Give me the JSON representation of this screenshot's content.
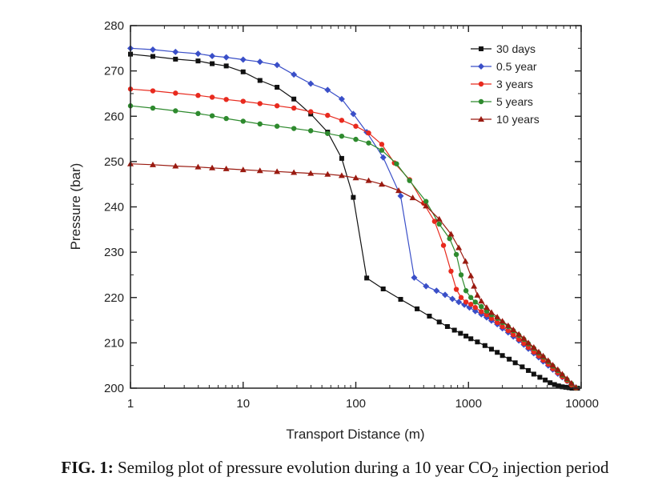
{
  "caption": {
    "label": "FIG. 1:",
    "text_before": "Semilog plot of pressure evolution during a 10 year CO",
    "subscript": "2",
    "text_after": " injection period"
  },
  "chart_data": {
    "type": "line",
    "title": "",
    "xlabel": "Transport Distance (m)",
    "ylabel": "Pressure (bar)",
    "xscale": "log",
    "xlim": [
      1,
      10000
    ],
    "ylim": [
      200,
      280
    ],
    "x_ticks": [
      1,
      10,
      100,
      1000,
      10000
    ],
    "x_tick_labels": [
      "1",
      "10",
      "100",
      "1000",
      "10000"
    ],
    "y_ticks": [
      200,
      210,
      220,
      230,
      240,
      250,
      260,
      270,
      280
    ],
    "y_tick_labels": [
      "200",
      "210",
      "220",
      "230",
      "240",
      "250",
      "260",
      "270",
      "280"
    ],
    "grid": false,
    "legend_position": "top-right",
    "series": [
      {
        "name": "30 days",
        "color": "#111111",
        "marker": "square",
        "x": [
          1,
          1.58,
          2.51,
          3.98,
          5.31,
          7.08,
          10,
          14.1,
          20,
          28.2,
          39.8,
          56.2,
          75,
          95,
          125,
          175,
          250,
          350,
          450,
          550,
          650,
          750,
          850,
          950,
          1050,
          1200,
          1400,
          1600,
          1800,
          2000,
          2300,
          2600,
          3000,
          3400,
          3800,
          4300,
          4800,
          5300,
          5800,
          6300,
          6800,
          7300,
          7800,
          8300,
          8800,
          9300
        ],
        "values": [
          273.7,
          273.2,
          272.6,
          272.2,
          271.6,
          271.1,
          269.8,
          267.9,
          266.4,
          263.8,
          260.5,
          256.5,
          250.7,
          242.1,
          224.3,
          221.9,
          219.6,
          217.5,
          215.9,
          214.6,
          213.6,
          212.8,
          212.1,
          211.5,
          210.9,
          210.2,
          209.4,
          208.6,
          207.9,
          207.2,
          206.4,
          205.6,
          204.7,
          203.9,
          203.1,
          202.4,
          201.8,
          201.2,
          200.8,
          200.5,
          200.3,
          200.2,
          200.1,
          200.0,
          200.0,
          200.0
        ]
      },
      {
        "name": "0.5 year",
        "color": "#3a4fc8",
        "marker": "diamond",
        "x": [
          1,
          1.58,
          2.51,
          3.98,
          5.31,
          7.08,
          10,
          14.1,
          20,
          28.2,
          39.8,
          56.2,
          75,
          95,
          125,
          175,
          250,
          330,
          420,
          520,
          620,
          720,
          820,
          920,
          1020,
          1150,
          1300,
          1450,
          1600,
          1800,
          2000,
          2250,
          2500,
          2800,
          3100,
          3400,
          3800,
          4200,
          4600,
          5100,
          5600,
          6200,
          6800,
          7500,
          8200,
          9000
        ],
        "values": [
          275.0,
          274.7,
          274.2,
          273.8,
          273.3,
          273.0,
          272.5,
          272.0,
          271.3,
          269.2,
          267.2,
          265.8,
          263.8,
          260.5,
          256.5,
          250.9,
          242.4,
          224.4,
          222.5,
          221.5,
          220.6,
          219.7,
          219.0,
          218.4,
          217.8,
          217.0,
          216.3,
          215.6,
          214.9,
          214.1,
          213.2,
          212.3,
          211.4,
          210.5,
          209.6,
          208.7,
          207.7,
          206.8,
          205.9,
          205.0,
          204.1,
          203.2,
          202.4,
          201.6,
          200.8,
          200.1
        ]
      },
      {
        "name": "3 years",
        "color": "#e82a1e",
        "marker": "circle",
        "x": [
          1,
          1.58,
          2.51,
          3.98,
          5.31,
          7.08,
          10,
          14.1,
          20,
          28.2,
          39.8,
          56.2,
          75,
          100,
          130,
          170,
          220,
          300,
          400,
          500,
          600,
          700,
          780,
          860,
          950,
          1050,
          1150,
          1300,
          1450,
          1600,
          1800,
          2000,
          2250,
          2500,
          2800,
          3100,
          3400,
          3800,
          4200,
          4600,
          5100,
          5600,
          6200,
          6800,
          7500,
          8200,
          9000
        ],
        "values": [
          266.0,
          265.6,
          265.1,
          264.6,
          264.2,
          263.7,
          263.3,
          262.8,
          262.3,
          261.8,
          261.0,
          260.2,
          259.1,
          257.8,
          256.3,
          253.8,
          249.7,
          246.0,
          240.8,
          236.8,
          231.5,
          225.8,
          221.8,
          220.0,
          219.0,
          218.5,
          217.8,
          216.9,
          216.2,
          215.4,
          214.5,
          213.6,
          212.7,
          211.8,
          210.8,
          209.9,
          209.0,
          208.0,
          207.1,
          206.2,
          205.3,
          204.3,
          203.4,
          202.5,
          201.6,
          200.7,
          200.0
        ]
      },
      {
        "name": "5 years",
        "color": "#2e8a2e",
        "marker": "circle",
        "x": [
          1,
          1.58,
          2.51,
          3.98,
          5.31,
          7.08,
          10,
          14.1,
          20,
          28.2,
          39.8,
          56.2,
          75,
          100,
          130,
          170,
          230,
          300,
          420,
          550,
          680,
          780,
          860,
          950,
          1050,
          1150,
          1300,
          1450,
          1600,
          1800,
          2000,
          2250,
          2500,
          2800,
          3100,
          3400,
          3800,
          4200,
          4600,
          5100,
          5600,
          6200,
          6800,
          7500,
          8200,
          9000
        ],
        "values": [
          262.3,
          261.8,
          261.2,
          260.6,
          260.1,
          259.5,
          258.9,
          258.3,
          257.8,
          257.3,
          256.8,
          256.2,
          255.6,
          254.9,
          254.1,
          252.5,
          249.5,
          245.8,
          241.2,
          236.2,
          233.0,
          229.5,
          225.0,
          221.5,
          220.0,
          219.0,
          218.0,
          217.0,
          216.2,
          215.4,
          214.5,
          213.6,
          212.7,
          211.7,
          210.8,
          209.8,
          208.8,
          207.8,
          206.9,
          205.9,
          204.9,
          203.9,
          202.9,
          201.9,
          201.0,
          200.1
        ]
      },
      {
        "name": "10 years",
        "color": "#9a1a10",
        "marker": "triangle",
        "x": [
          1,
          1.58,
          2.51,
          3.98,
          5.31,
          7.08,
          10,
          14.1,
          20,
          28.2,
          39.8,
          56.2,
          75,
          100,
          130,
          170,
          240,
          320,
          420,
          550,
          700,
          820,
          940,
          1050,
          1120,
          1200,
          1300,
          1450,
          1600,
          1800,
          2000,
          2250,
          2500,
          2800,
          3100,
          3400,
          3800,
          4200,
          4600,
          5100,
          5600,
          6200,
          6800,
          7500,
          8200,
          9000
        ],
        "values": [
          249.5,
          249.3,
          249.0,
          248.8,
          248.6,
          248.4,
          248.2,
          248.0,
          247.8,
          247.6,
          247.4,
          247.2,
          246.9,
          246.4,
          245.8,
          245.0,
          243.6,
          242.0,
          240.2,
          237.3,
          234.0,
          231.0,
          228.0,
          224.8,
          222.5,
          220.5,
          219.2,
          217.8,
          216.7,
          215.7,
          214.8,
          213.8,
          212.9,
          211.9,
          211.0,
          210.0,
          209.0,
          208.0,
          207.1,
          206.1,
          205.1,
          204.1,
          203.1,
          202.1,
          201.1,
          200.2
        ]
      }
    ]
  }
}
